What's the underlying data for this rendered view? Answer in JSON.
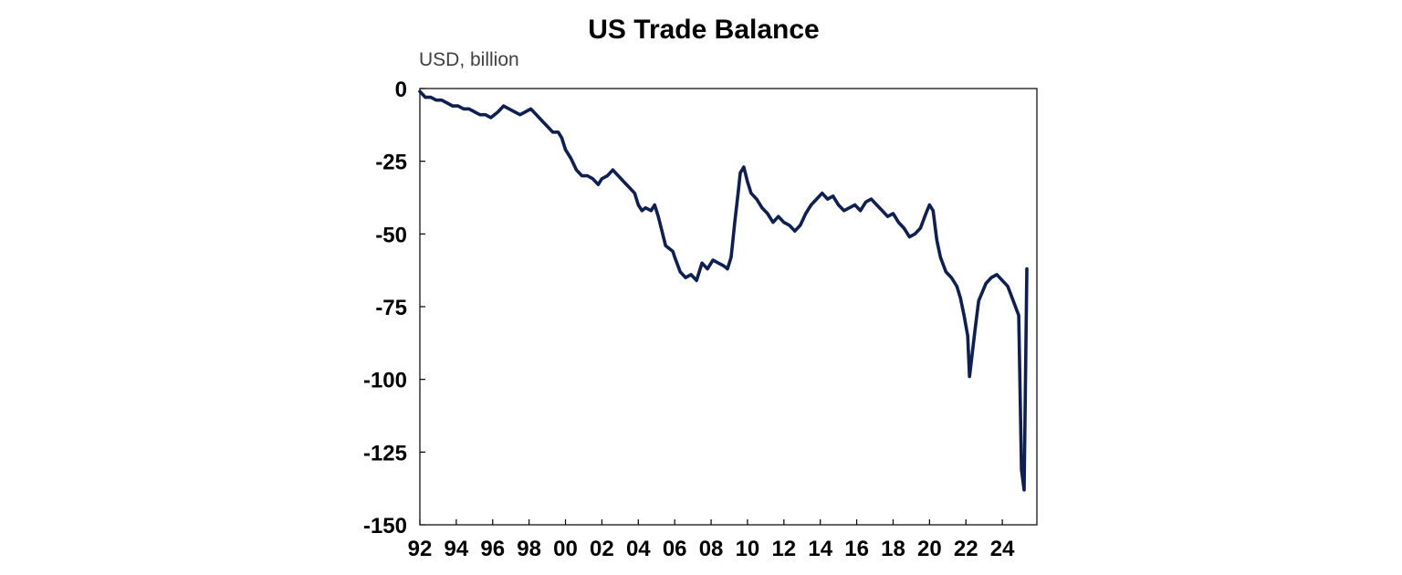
{
  "chart_data": {
    "type": "line",
    "title": "US Trade Balance",
    "ylabel": "USD, billion",
    "xlabel": "",
    "xlim": [
      1992,
      2025.9
    ],
    "ylim": [
      -150,
      0
    ],
    "x_ticks": [
      {
        "value": 1992,
        "label": "92"
      },
      {
        "value": 1994,
        "label": "94"
      },
      {
        "value": 1996,
        "label": "96"
      },
      {
        "value": 1998,
        "label": "98"
      },
      {
        "value": 2000,
        "label": "00"
      },
      {
        "value": 2002,
        "label": "02"
      },
      {
        "value": 2004,
        "label": "04"
      },
      {
        "value": 2006,
        "label": "06"
      },
      {
        "value": 2008,
        "label": "08"
      },
      {
        "value": 2010,
        "label": "10"
      },
      {
        "value": 2012,
        "label": "12"
      },
      {
        "value": 2014,
        "label": "14"
      },
      {
        "value": 2016,
        "label": "16"
      },
      {
        "value": 2018,
        "label": "18"
      },
      {
        "value": 2020,
        "label": "20"
      },
      {
        "value": 2022,
        "label": "22"
      },
      {
        "value": 2024,
        "label": "24"
      }
    ],
    "y_ticks": [
      {
        "value": 0,
        "label": "0"
      },
      {
        "value": -25,
        "label": "-25"
      },
      {
        "value": -50,
        "label": "-50"
      },
      {
        "value": -75,
        "label": "-75"
      },
      {
        "value": -100,
        "label": "-100"
      },
      {
        "value": -125,
        "label": "-125"
      },
      {
        "value": -150,
        "label": "-150"
      }
    ],
    "grid": false,
    "legend": "none",
    "series": [
      {
        "color": "#0f1f4f",
        "points": [
          [
            1992.0,
            -1
          ],
          [
            1992.3,
            -3
          ],
          [
            1992.6,
            -3
          ],
          [
            1992.9,
            -4
          ],
          [
            1993.2,
            -4
          ],
          [
            1993.5,
            -5
          ],
          [
            1993.8,
            -6
          ],
          [
            1994.1,
            -6
          ],
          [
            1994.4,
            -7
          ],
          [
            1994.7,
            -7
          ],
          [
            1995.0,
            -8
          ],
          [
            1995.3,
            -9
          ],
          [
            1995.6,
            -9
          ],
          [
            1995.9,
            -10
          ],
          [
            1996.1,
            -9
          ],
          [
            1996.3,
            -8
          ],
          [
            1996.6,
            -6
          ],
          [
            1996.9,
            -7
          ],
          [
            1997.2,
            -8
          ],
          [
            1997.5,
            -9
          ],
          [
            1997.8,
            -8
          ],
          [
            1998.1,
            -7
          ],
          [
            1998.4,
            -9
          ],
          [
            1998.7,
            -11
          ],
          [
            1999.0,
            -13
          ],
          [
            1999.3,
            -15
          ],
          [
            1999.6,
            -15
          ],
          [
            1999.8,
            -17
          ],
          [
            2000.0,
            -21
          ],
          [
            2000.3,
            -24
          ],
          [
            2000.6,
            -28
          ],
          [
            2000.9,
            -30
          ],
          [
            2001.2,
            -30
          ],
          [
            2001.5,
            -31
          ],
          [
            2001.8,
            -33
          ],
          [
            2002.0,
            -31
          ],
          [
            2002.3,
            -30
          ],
          [
            2002.6,
            -28
          ],
          [
            2002.9,
            -30
          ],
          [
            2003.2,
            -32
          ],
          [
            2003.5,
            -34
          ],
          [
            2003.8,
            -36
          ],
          [
            2004.0,
            -40
          ],
          [
            2004.2,
            -42
          ],
          [
            2004.4,
            -41
          ],
          [
            2004.7,
            -42
          ],
          [
            2004.9,
            -40
          ],
          [
            2005.1,
            -44
          ],
          [
            2005.3,
            -49
          ],
          [
            2005.5,
            -54
          ],
          [
            2005.7,
            -55
          ],
          [
            2005.9,
            -56
          ],
          [
            2006.0,
            -58
          ],
          [
            2006.3,
            -63
          ],
          [
            2006.6,
            -65
          ],
          [
            2006.9,
            -64
          ],
          [
            2007.2,
            -66
          ],
          [
            2007.5,
            -60
          ],
          [
            2007.8,
            -62
          ],
          [
            2008.1,
            -59
          ],
          [
            2008.4,
            -60
          ],
          [
            2008.7,
            -61
          ],
          [
            2008.9,
            -62
          ],
          [
            2009.1,
            -58
          ],
          [
            2009.3,
            -46
          ],
          [
            2009.5,
            -35
          ],
          [
            2009.6,
            -29
          ],
          [
            2009.8,
            -27
          ],
          [
            2010.0,
            -32
          ],
          [
            2010.2,
            -36
          ],
          [
            2010.5,
            -38
          ],
          [
            2010.8,
            -41
          ],
          [
            2011.1,
            -43
          ],
          [
            2011.4,
            -46
          ],
          [
            2011.7,
            -44
          ],
          [
            2012.0,
            -46
          ],
          [
            2012.3,
            -47
          ],
          [
            2012.6,
            -49
          ],
          [
            2012.9,
            -47
          ],
          [
            2013.2,
            -43
          ],
          [
            2013.5,
            -40
          ],
          [
            2013.8,
            -38
          ],
          [
            2014.1,
            -36
          ],
          [
            2014.4,
            -38
          ],
          [
            2014.7,
            -37
          ],
          [
            2015.0,
            -40
          ],
          [
            2015.3,
            -42
          ],
          [
            2015.6,
            -41
          ],
          [
            2015.9,
            -40
          ],
          [
            2016.2,
            -42
          ],
          [
            2016.5,
            -39
          ],
          [
            2016.8,
            -38
          ],
          [
            2017.1,
            -40
          ],
          [
            2017.4,
            -42
          ],
          [
            2017.7,
            -44
          ],
          [
            2018.0,
            -43
          ],
          [
            2018.3,
            -46
          ],
          [
            2018.6,
            -48
          ],
          [
            2018.9,
            -51
          ],
          [
            2019.2,
            -50
          ],
          [
            2019.5,
            -48
          ],
          [
            2019.8,
            -43
          ],
          [
            2020.0,
            -40
          ],
          [
            2020.2,
            -42
          ],
          [
            2020.4,
            -52
          ],
          [
            2020.6,
            -58
          ],
          [
            2020.9,
            -63
          ],
          [
            2021.2,
            -65
          ],
          [
            2021.5,
            -68
          ],
          [
            2021.7,
            -72
          ],
          [
            2021.9,
            -78
          ],
          [
            2022.1,
            -85
          ],
          [
            2022.2,
            -99
          ],
          [
            2022.35,
            -91
          ],
          [
            2022.5,
            -83
          ],
          [
            2022.7,
            -73
          ],
          [
            2022.9,
            -70
          ],
          [
            2023.1,
            -67
          ],
          [
            2023.4,
            -65
          ],
          [
            2023.7,
            -64
          ],
          [
            2024.0,
            -66
          ],
          [
            2024.3,
            -68
          ],
          [
            2024.6,
            -73
          ],
          [
            2024.9,
            -78
          ],
          [
            2025.05,
            -131
          ],
          [
            2025.2,
            -138
          ],
          [
            2025.35,
            -62
          ]
        ]
      }
    ]
  }
}
